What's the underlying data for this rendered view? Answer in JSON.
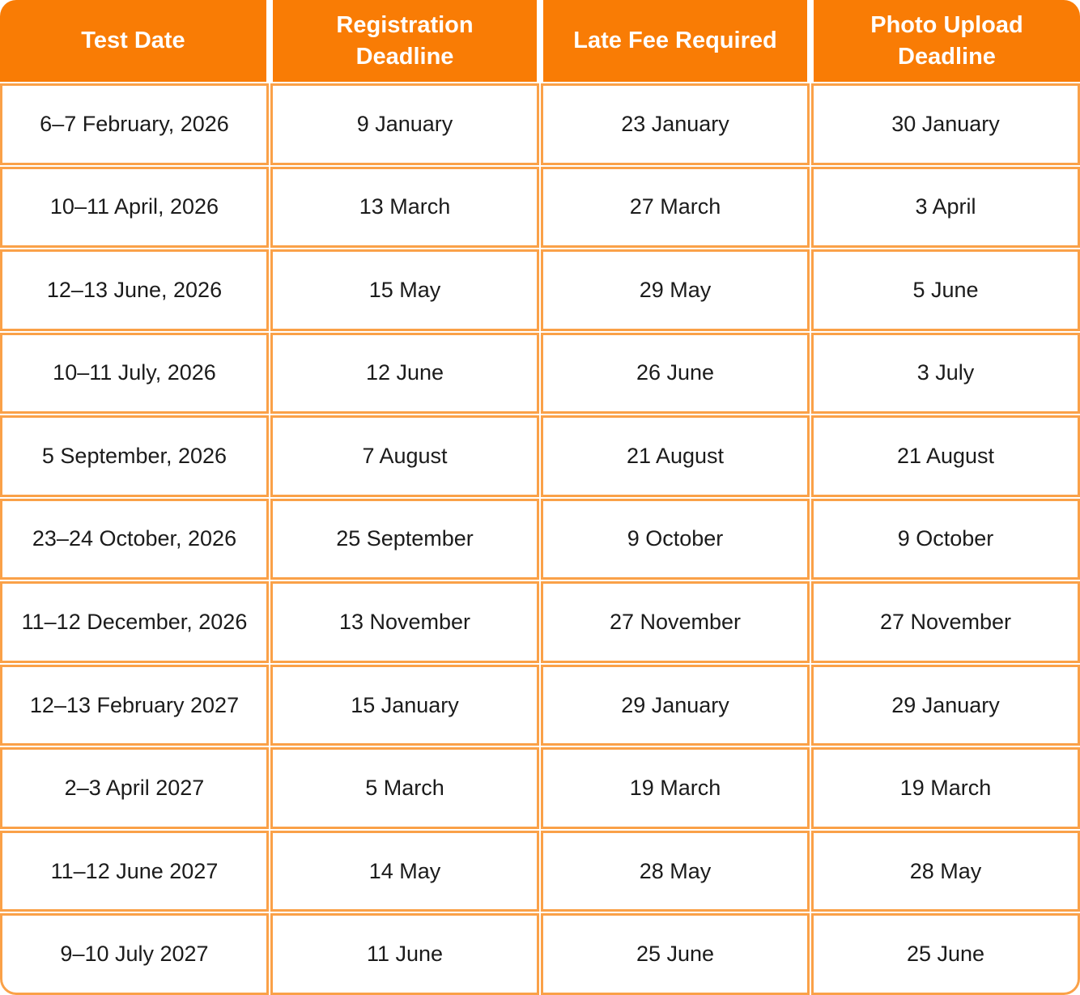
{
  "colors": {
    "header_bg": "#F97C05",
    "grid_border": "#FAA148",
    "header_text": "#FFFFFF",
    "cell_text": "#1B1B1B"
  },
  "table": {
    "columns": [
      "Test Date",
      "Registration\nDeadline",
      "Late Fee Required",
      "Photo Upload\nDeadline"
    ],
    "rows": [
      [
        "6–7 February, 2026",
        "9 January",
        "23 January",
        "30 January"
      ],
      [
        "10–11 April, 2026",
        "13 March",
        "27 March",
        "3 April"
      ],
      [
        "12–13 June, 2026",
        "15 May",
        "29 May",
        "5 June"
      ],
      [
        "10–11 July, 2026",
        "12 June",
        "26 June",
        "3 July"
      ],
      [
        "5 September, 2026",
        "7 August",
        "21 August",
        "21 August"
      ],
      [
        "23–24 October, 2026",
        "25 September",
        "9 October",
        "9 October"
      ],
      [
        "11–12 December, 2026",
        "13 November",
        "27 November",
        "27 November"
      ],
      [
        "12–13 February 2027",
        "15 January",
        "29 January",
        "29 January"
      ],
      [
        "2–3 April 2027",
        "5 March",
        "19 March",
        "19 March"
      ],
      [
        "11–12 June 2027",
        "14 May",
        "28 May",
        "28 May"
      ],
      [
        "9–10 July 2027",
        "11 June",
        "25 June",
        "25 June"
      ]
    ]
  }
}
